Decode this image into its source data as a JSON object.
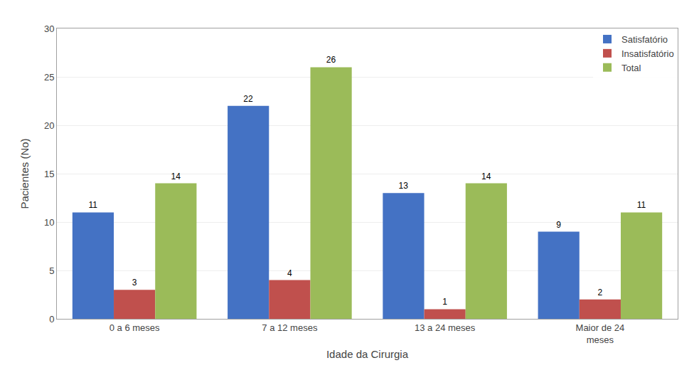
{
  "chart_data": {
    "type": "bar",
    "xlabel": "Idade da Cirurgia",
    "ylabel": "Pacientes (No)",
    "categories": [
      "0 a 6 meses",
      "7 a 12 meses",
      "13 a 24 meses",
      "Maior de 24\nmeses"
    ],
    "series": [
      {
        "name": "Satisfatório",
        "color": "#4472C4",
        "values": [
          11,
          22,
          13,
          9
        ]
      },
      {
        "name": "Insatisfatório",
        "color": "#C0504D",
        "values": [
          3,
          4,
          1,
          2
        ]
      },
      {
        "name": "Total",
        "color": "#9BBB59",
        "values": [
          14,
          26,
          14,
          11
        ]
      }
    ],
    "ylim": [
      0,
      30
    ],
    "yticks": [
      0,
      5,
      10,
      15,
      20,
      25,
      30
    ],
    "grid": true,
    "legend": "upper right",
    "data_labels": true
  }
}
